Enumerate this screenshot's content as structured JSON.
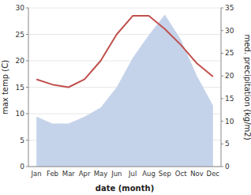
{
  "chart_data": {
    "type": "line",
    "xlabel": "date (month)",
    "ylabel": "max temp (C)",
    "y2label": "med. precipitation (kg/m2)",
    "categories": [
      "Jan",
      "Feb",
      "Mar",
      "Apr",
      "May",
      "Jun",
      "Jul",
      "Aug",
      "Sep",
      "Oct",
      "Nov",
      "Dec"
    ],
    "series": [
      {
        "type": "area",
        "axis": "y2",
        "color": "#c5d3ea",
        "values": [
          11.0,
          9.5,
          9.5,
          11.0,
          13.0,
          17.5,
          24.0,
          29.0,
          33.5,
          28.0,
          20.0,
          13.5
        ]
      },
      {
        "type": "line",
        "color": "#c0504d",
        "values": [
          16.5,
          15.5,
          15.0,
          16.5,
          20.0,
          25.0,
          28.5,
          28.5,
          26.0,
          23.0,
          19.5,
          17.0
        ]
      }
    ],
    "ylim": [
      0,
      30
    ],
    "yticks": [
      0,
      5,
      10,
      15,
      20,
      25,
      30
    ],
    "y2lim": [
      0,
      35
    ],
    "y2ticks": [
      0,
      5,
      10,
      15,
      20,
      25,
      30,
      35
    ],
    "grid": true
  }
}
